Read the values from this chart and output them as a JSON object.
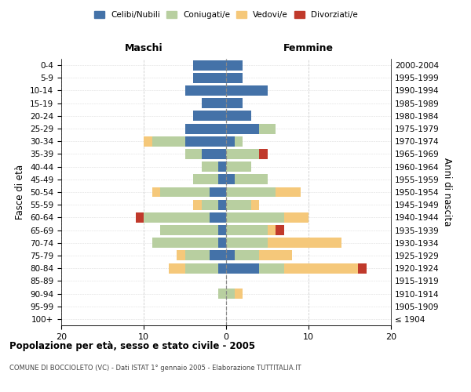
{
  "age_groups": [
    "100+",
    "95-99",
    "90-94",
    "85-89",
    "80-84",
    "75-79",
    "70-74",
    "65-69",
    "60-64",
    "55-59",
    "50-54",
    "45-49",
    "40-44",
    "35-39",
    "30-34",
    "25-29",
    "20-24",
    "15-19",
    "10-14",
    "5-9",
    "0-4"
  ],
  "birth_years": [
    "≤ 1904",
    "1905-1909",
    "1910-1914",
    "1915-1919",
    "1920-1924",
    "1925-1929",
    "1930-1934",
    "1935-1939",
    "1940-1944",
    "1945-1949",
    "1950-1954",
    "1955-1959",
    "1960-1964",
    "1965-1969",
    "1970-1974",
    "1975-1979",
    "1980-1984",
    "1985-1989",
    "1990-1994",
    "1995-1999",
    "2000-2004"
  ],
  "colors": {
    "celibi": "#4472a8",
    "coniugati": "#b8cfa0",
    "vedovi": "#f5c87a",
    "divorziati": "#c0392b"
  },
  "legend_labels": [
    "Celibi/Nubili",
    "Coniugati/e",
    "Vedovi/e",
    "Divorziati/e"
  ],
  "maschi": {
    "celibi": [
      0,
      0,
      0,
      0,
      1,
      2,
      1,
      1,
      2,
      1,
      2,
      1,
      1,
      3,
      5,
      5,
      4,
      3,
      5,
      4,
      4
    ],
    "coniugati": [
      0,
      0,
      1,
      0,
      4,
      3,
      8,
      7,
      8,
      2,
      6,
      3,
      2,
      2,
      4,
      0,
      0,
      0,
      0,
      0,
      0
    ],
    "vedovi": [
      0,
      0,
      0,
      0,
      2,
      1,
      0,
      0,
      0,
      1,
      1,
      0,
      0,
      0,
      1,
      0,
      0,
      0,
      0,
      0,
      0
    ],
    "divorziati": [
      0,
      0,
      0,
      0,
      0,
      0,
      0,
      0,
      1,
      0,
      0,
      0,
      0,
      0,
      0,
      0,
      0,
      0,
      0,
      0,
      0
    ]
  },
  "femmine": {
    "nubili": [
      0,
      0,
      0,
      0,
      4,
      1,
      0,
      0,
      0,
      0,
      0,
      1,
      0,
      0,
      1,
      4,
      3,
      2,
      5,
      2,
      2
    ],
    "coniugate": [
      0,
      0,
      1,
      0,
      3,
      3,
      5,
      5,
      7,
      3,
      6,
      4,
      3,
      4,
      1,
      2,
      0,
      0,
      0,
      0,
      0
    ],
    "vedove": [
      0,
      0,
      1,
      0,
      9,
      4,
      9,
      1,
      3,
      1,
      3,
      0,
      0,
      0,
      0,
      0,
      0,
      0,
      0,
      0,
      0
    ],
    "divorziate": [
      0,
      0,
      0,
      0,
      1,
      0,
      0,
      1,
      0,
      0,
      0,
      0,
      0,
      1,
      0,
      0,
      0,
      0,
      0,
      0,
      0
    ]
  },
  "xlim": [
    -20,
    20
  ],
  "xticks": [
    -20,
    -10,
    0,
    10,
    20
  ],
  "xticklabels": [
    "20",
    "10",
    "0",
    "10",
    "20"
  ],
  "title": "Popolazione per età, sesso e stato civile - 2005",
  "subtitle": "COMUNE DI BOCCIOLETO (VC) - Dati ISTAT 1° gennaio 2005 - Elaborazione TUTTITALIA.IT",
  "ylabel_left": "Fasce di età",
  "ylabel_right": "Anni di nascita",
  "header_maschi": "Maschi",
  "header_femmine": "Femmine",
  "bar_height": 0.8
}
